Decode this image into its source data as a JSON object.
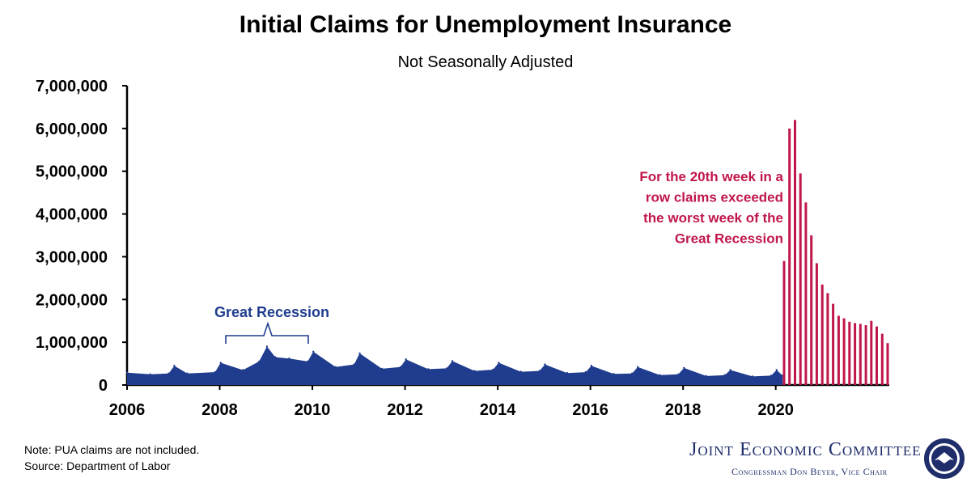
{
  "chart_data": {
    "type": "area",
    "title": "Initial Claims for Unemployment Insurance",
    "subtitle": "Not Seasonally Adjusted",
    "y_tick_labels": [
      "0",
      "1,000,000",
      "2,000,000",
      "3,000,000",
      "4,000,000",
      "5,000,000",
      "6,000,000",
      "7,000,000"
    ],
    "x_tick_labels": [
      "2006",
      "2008",
      "2010",
      "2012",
      "2014",
      "2016",
      "2018",
      "2020"
    ],
    "ylim": [
      0,
      7000000
    ],
    "xlim": [
      2006,
      2022.45
    ],
    "colors": {
      "pre_pandemic": "#1f3c8e",
      "pandemic": "#c0174a"
    },
    "series": [
      {
        "name": "Great Recession",
        "type": "area",
        "x": [
          2006,
          2006.5,
          2006.9,
          2007.02,
          2007.3,
          2007.9,
          2008.02,
          2008.5,
          2008.85,
          2009.02,
          2009.2,
          2009.5,
          2009.9,
          2010.02,
          2010.5,
          2010.9,
          2011.02,
          2011.5,
          2011.9,
          2012.02,
          2012.5,
          2012.9,
          2013.02,
          2013.5,
          2013.9,
          2014.02,
          2014.5,
          2014.9,
          2015.02,
          2015.5,
          2015.9,
          2016.02,
          2016.5,
          2016.9,
          2017.02,
          2017.5,
          2017.9,
          2018.02,
          2018.5,
          2018.9,
          2019.02,
          2019.5,
          2019.9,
          2020.02,
          2020.15
        ],
        "values": [
          290000,
          250000,
          270000,
          450000,
          270000,
          300000,
          520000,
          350000,
          550000,
          900000,
          650000,
          620000,
          550000,
          780000,
          420000,
          480000,
          740000,
          380000,
          420000,
          600000,
          370000,
          390000,
          560000,
          330000,
          360000,
          520000,
          310000,
          330000,
          480000,
          280000,
          300000,
          450000,
          260000,
          270000,
          420000,
          230000,
          250000,
          400000,
          210000,
          230000,
          350000,
          200000,
          220000,
          350000,
          220000
        ]
      },
      {
        "name": "For the 20th week in a row claims exceeded the worst week of the Great Recession",
        "type": "bar",
        "values": [
          2900000,
          6000000,
          6200000,
          4950000,
          4270000,
          3500000,
          2850000,
          2350000,
          2150000,
          1900000,
          1620000,
          1560000,
          1480000,
          1450000,
          1430000,
          1400000,
          1500000,
          1370000,
          1200000,
          980000
        ]
      }
    ],
    "annotations": [
      {
        "text": "Great Recession",
        "color": "#1f3c8e"
      },
      {
        "lines": [
          "For the 20th week in a",
          "row claims exceeded",
          "the worst week of the",
          "Great Recession"
        ],
        "color": "#c0174a"
      }
    ]
  },
  "footer": {
    "note": "Note: PUA claims are not included.",
    "source": "Source: Department of Labor",
    "org_name": "Joint Economic Committee",
    "org_sub": "Congressman Don Beyer, Vice Chair"
  }
}
